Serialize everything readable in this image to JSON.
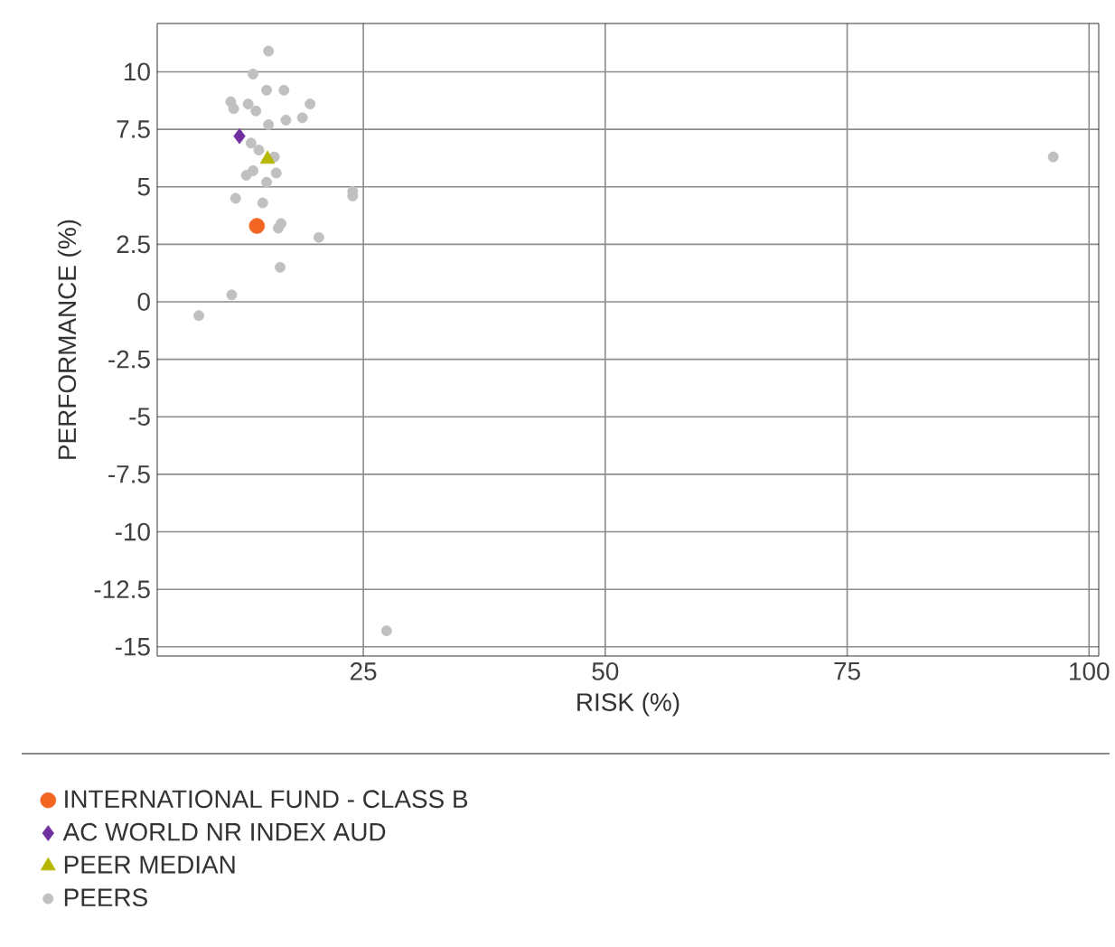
{
  "chart_data": {
    "type": "scatter",
    "xlabel": "RISK (%)",
    "ylabel": "PERFORMANCE (%)",
    "xlim": [
      3.7,
      101
    ],
    "ylim": [
      -15.4,
      12.1
    ],
    "xticks": [
      25,
      50,
      75,
      100
    ],
    "yticks": [
      -15,
      -12.5,
      -10,
      -7.5,
      -5,
      -2.5,
      0,
      2.5,
      5,
      7.5,
      10
    ],
    "grid": true,
    "legend": "bottom",
    "series": [
      {
        "name": "INTERNATIONAL FUND - CLASS B",
        "color": "#f26522",
        "marker": "circle",
        "x": [
          14.0
        ],
        "values": [
          3.3
        ]
      },
      {
        "name": "AC WORLD NR INDEX AUD",
        "color": "#7030a0",
        "marker": "diamond",
        "x": [
          12.2
        ],
        "values": [
          7.2
        ]
      },
      {
        "name": "PEER MEDIAN",
        "color": "#b5b800",
        "marker": "triangle",
        "x": [
          15.1
        ],
        "values": [
          6.2
        ]
      },
      {
        "name": "PEERS",
        "color": "#c0c0c0",
        "marker": "circle",
        "x": [
          15.2,
          13.6,
          15.0,
          16.8,
          11.3,
          11.6,
          13.1,
          13.9,
          19.5,
          18.7,
          17.0,
          15.2,
          13.4,
          14.2,
          15.8,
          12.9,
          13.6,
          16.0,
          15.0,
          23.9,
          23.9,
          11.8,
          14.6,
          16.5,
          16.2,
          20.4,
          16.4,
          11.4,
          8.0,
          27.4,
          96.3
        ],
        "values": [
          10.9,
          9.9,
          9.2,
          9.2,
          8.7,
          8.4,
          8.6,
          8.3,
          8.6,
          8.0,
          7.9,
          7.7,
          6.9,
          6.6,
          6.3,
          5.5,
          5.7,
          5.6,
          5.2,
          4.8,
          4.6,
          4.5,
          4.3,
          3.4,
          3.2,
          2.8,
          1.5,
          0.3,
          -0.6,
          -14.3,
          6.3
        ]
      }
    ]
  }
}
